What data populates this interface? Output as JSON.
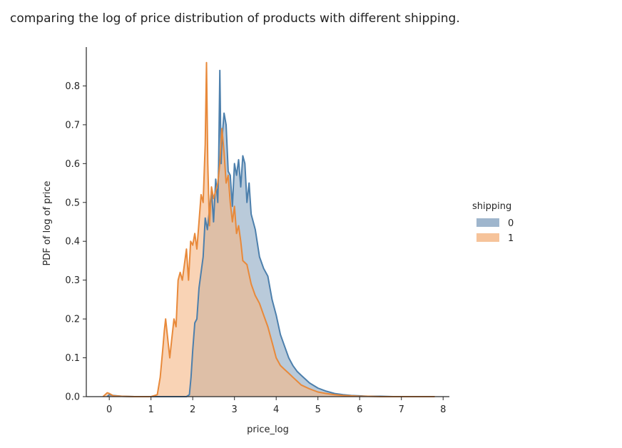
{
  "caption": "comparing the log of price distribution of products with different shipping.",
  "chart_data": {
    "type": "area",
    "xlabel": "price_log",
    "ylabel": "PDF of log of price",
    "xlim": [
      -0.55,
      8.15
    ],
    "ylim": [
      0,
      0.9
    ],
    "x_ticks": [
      0,
      1,
      2,
      3,
      4,
      5,
      6,
      7,
      8
    ],
    "y_ticks": [
      0.0,
      0.1,
      0.2,
      0.3,
      0.4,
      0.5,
      0.6,
      0.7,
      0.8
    ],
    "grid": false,
    "legend": {
      "title": "shipping",
      "placement": "right"
    },
    "series": [
      {
        "name": "0",
        "color": "#4c7fac",
        "fill": "#8ea9c4",
        "kde": {
          "x": [
            -0.05,
            0.0,
            0.1,
            0.3,
            0.6,
            1.0,
            1.5,
            1.75,
            1.85,
            1.92,
            1.96,
            2.0,
            2.05,
            2.1,
            2.15,
            2.2,
            2.25,
            2.3,
            2.35,
            2.4,
            2.45,
            2.5,
            2.55,
            2.6,
            2.62,
            2.65,
            2.68,
            2.7,
            2.75,
            2.8,
            2.85,
            2.9,
            2.95,
            3.0,
            3.05,
            3.1,
            3.15,
            3.2,
            3.25,
            3.3,
            3.35,
            3.4,
            3.5,
            3.6,
            3.7,
            3.8,
            3.9,
            4.0,
            4.1,
            4.2,
            4.3,
            4.4,
            4.5,
            4.6,
            4.8,
            5.0,
            5.2,
            5.4,
            5.6,
            5.8,
            6.0,
            6.2,
            6.5,
            6.8,
            7.0,
            7.3,
            7.6,
            7.8
          ],
          "y": [
            0.0,
            0.005,
            0.003,
            0.001,
            0.0,
            0.0,
            0.0,
            0.0,
            0.0,
            0.005,
            0.05,
            0.12,
            0.19,
            0.2,
            0.28,
            0.32,
            0.36,
            0.46,
            0.43,
            0.48,
            0.53,
            0.45,
            0.56,
            0.5,
            0.6,
            0.84,
            0.6,
            0.66,
            0.73,
            0.7,
            0.58,
            0.57,
            0.49,
            0.6,
            0.57,
            0.61,
            0.54,
            0.62,
            0.6,
            0.5,
            0.55,
            0.47,
            0.43,
            0.36,
            0.33,
            0.31,
            0.25,
            0.21,
            0.16,
            0.13,
            0.1,
            0.08,
            0.065,
            0.055,
            0.035,
            0.022,
            0.014,
            0.008,
            0.005,
            0.003,
            0.002,
            0.001,
            0.001,
            0.0,
            0.0,
            0.0,
            0.0,
            0.0
          ]
        }
      },
      {
        "name": "1",
        "color": "#e8893a",
        "fill": "#f5b888",
        "kde": {
          "x": [
            -0.15,
            -0.1,
            -0.05,
            0.0,
            0.05,
            0.1,
            0.3,
            0.6,
            1.0,
            1.15,
            1.22,
            1.28,
            1.32,
            1.35,
            1.4,
            1.45,
            1.5,
            1.55,
            1.6,
            1.65,
            1.7,
            1.75,
            1.8,
            1.85,
            1.9,
            1.95,
            2.0,
            2.05,
            2.1,
            2.15,
            2.2,
            2.25,
            2.3,
            2.33,
            2.36,
            2.4,
            2.45,
            2.5,
            2.55,
            2.6,
            2.65,
            2.7,
            2.75,
            2.8,
            2.85,
            2.9,
            2.95,
            3.0,
            3.05,
            3.1,
            3.15,
            3.2,
            3.3,
            3.4,
            3.5,
            3.6,
            3.7,
            3.8,
            3.9,
            4.0,
            4.1,
            4.2,
            4.3,
            4.4,
            4.5,
            4.6,
            4.8,
            5.0,
            5.2,
            5.4,
            5.6,
            5.8,
            6.0,
            6.2,
            6.5,
            6.8,
            7.0,
            7.3,
            7.6,
            7.8
          ],
          "y": [
            0.0,
            0.005,
            0.01,
            0.008,
            0.005,
            0.002,
            0.001,
            0.0,
            0.0,
            0.005,
            0.05,
            0.12,
            0.17,
            0.2,
            0.15,
            0.1,
            0.15,
            0.2,
            0.18,
            0.3,
            0.32,
            0.3,
            0.34,
            0.38,
            0.3,
            0.4,
            0.39,
            0.42,
            0.38,
            0.45,
            0.52,
            0.5,
            0.65,
            0.86,
            0.6,
            0.44,
            0.54,
            0.51,
            0.53,
            0.55,
            0.6,
            0.69,
            0.63,
            0.55,
            0.57,
            0.5,
            0.45,
            0.49,
            0.42,
            0.44,
            0.4,
            0.35,
            0.34,
            0.29,
            0.26,
            0.24,
            0.21,
            0.18,
            0.14,
            0.1,
            0.08,
            0.07,
            0.06,
            0.05,
            0.04,
            0.03,
            0.02,
            0.012,
            0.008,
            0.005,
            0.003,
            0.002,
            0.001,
            0.001,
            0.0,
            0.0,
            0.0,
            0.0,
            0.0,
            0.0
          ]
        }
      }
    ]
  }
}
